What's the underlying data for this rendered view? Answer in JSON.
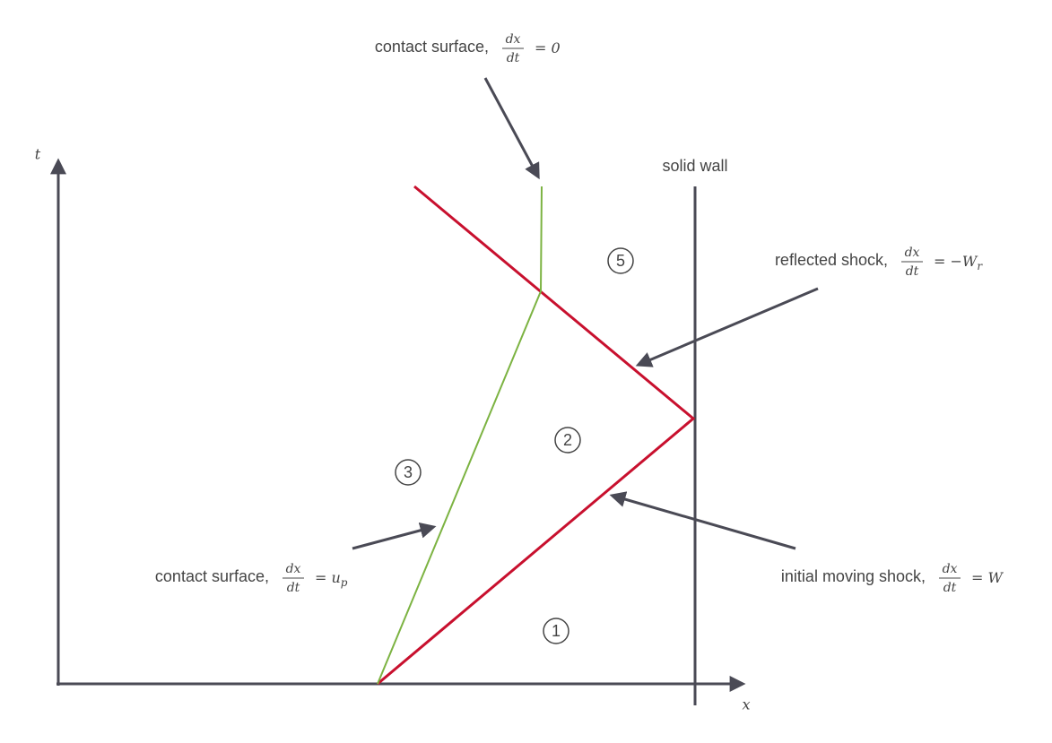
{
  "axes": {
    "t": "t",
    "x": "x"
  },
  "wall": "solid wall",
  "regions": [
    "5",
    "2",
    "3",
    "1"
  ],
  "labels": [
    {
      "text": "contact surface,",
      "num": "dx",
      "den": "dt",
      "rhs": "= 0"
    },
    {
      "text": "reflected shock,",
      "num": "dx",
      "den": "dt",
      "rhs": "= −W",
      "sub": "r"
    },
    {
      "text": "contact surface,",
      "num": "dx",
      "den": "dt",
      "rhs": "= u",
      "sub": "p"
    },
    {
      "text": "initial moving shock,",
      "num": "dx",
      "den": "dt",
      "rhs": "= W"
    }
  ]
}
